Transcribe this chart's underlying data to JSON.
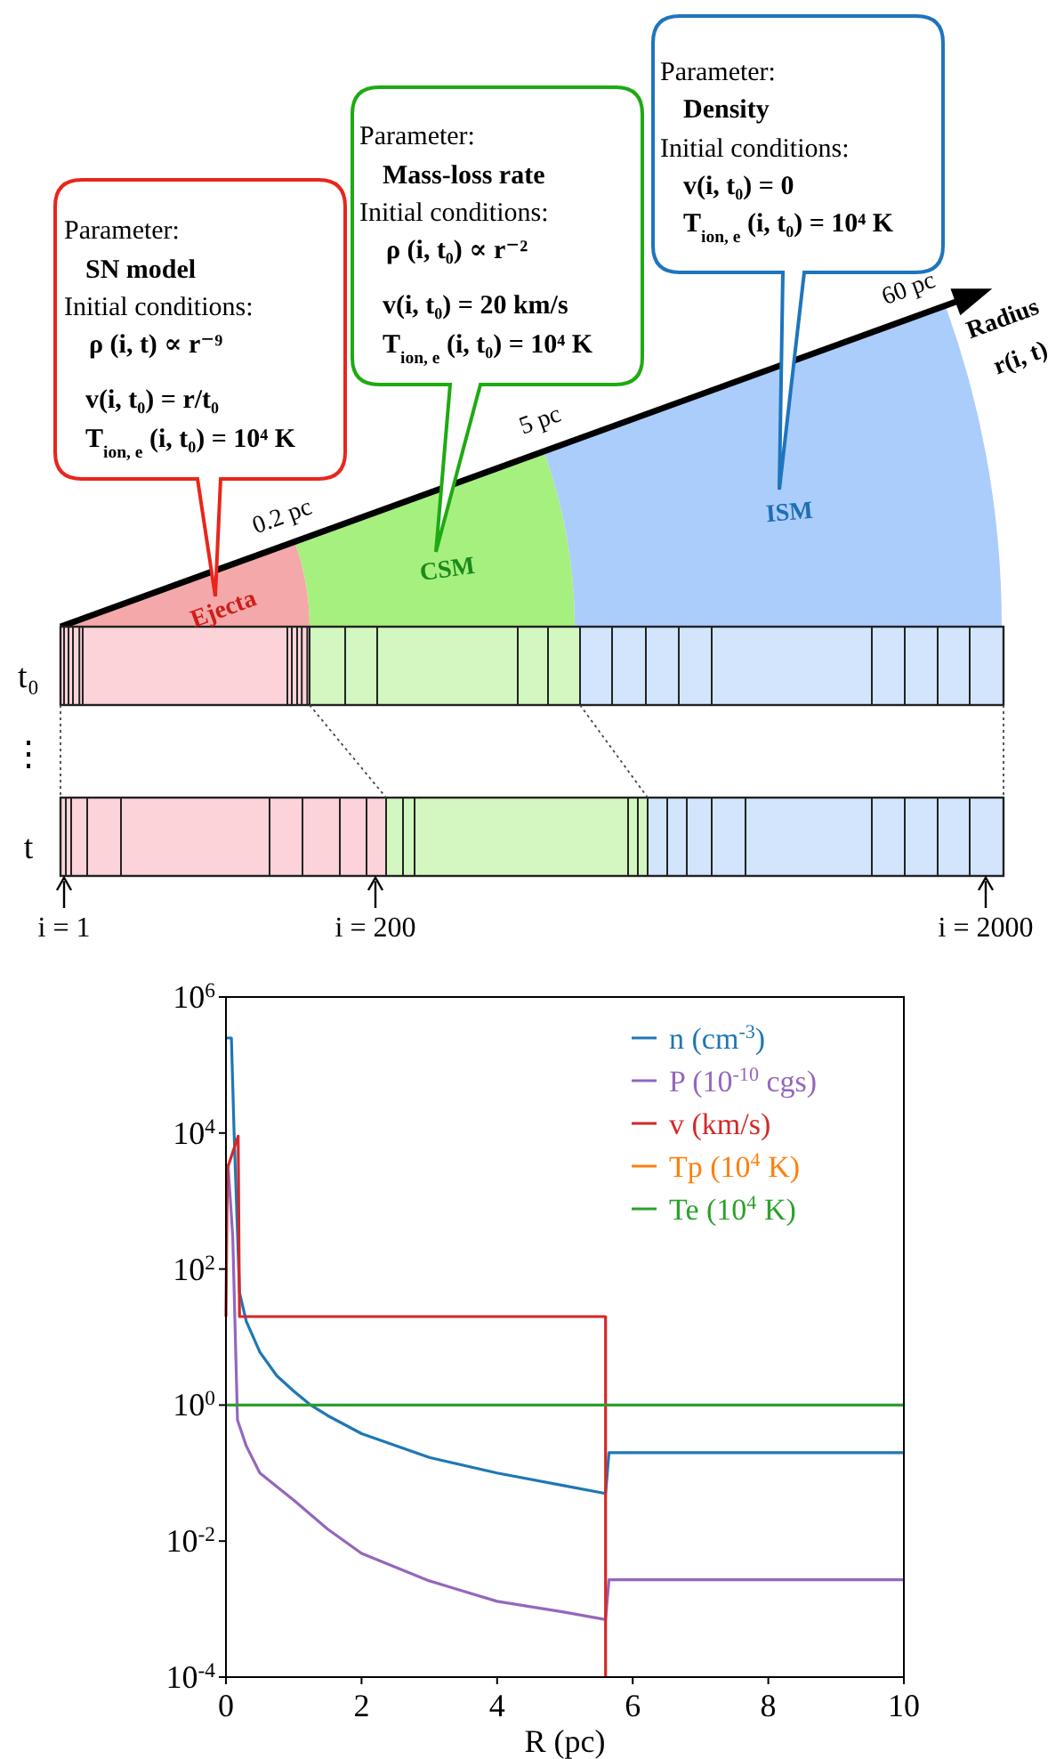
{
  "chart_data": [
    {
      "type": "other",
      "annotations": [
        "Parameter:",
        "SN model",
        "Initial conditions:",
        "ρ (i, t) ∝ r⁻⁹",
        "v(i, t₀) = r/t₀",
        "T$_{ion, e}$ (i, t₀) = 10⁴ K",
        "Parameter:",
        "Mass-loss rate",
        "Initial conditions:",
        "ρ (i, t₀) ∝ r⁻²",
        "v(i, t₀) = 20 km/s",
        "T$_{ion, e}$ (i, t₀) = 10⁴ K",
        "Parameter:",
        "Density",
        "Initial conditions:",
        "v(i, t₀) = 0",
        "T$_{ion, e}$ (i, t₀) = 10⁴ K",
        "Ejecta",
        "CSM",
        "ISM",
        "0.2 pc",
        "5 pc",
        "60 pc",
        "Radius",
        "r(i, t)",
        "t₀",
        "⋮",
        "t",
        "i = 1",
        "i = 200",
        "i = 2000"
      ]
    },
    {
      "type": "line",
      "xlabel": "R (pc)",
      "log": "y",
      "grid": false,
      "legend": "top right",
      "xlim": [
        0,
        10
      ],
      "xticks": [
        0,
        2,
        4,
        6,
        8,
        10
      ],
      "ylim": [
        0.0001,
        1000000
      ],
      "yticks": [
        {
          "value": 0.0001,
          "label": "10$^{-4}$"
        },
        {
          "value": 0.01,
          "label": "10$^{-2}$"
        },
        {
          "value": 1,
          "label": "10$^{0}$"
        },
        {
          "value": 100,
          "label": "10$^{2}$"
        },
        {
          "value": 10000,
          "label": "10$^{4}$"
        },
        {
          "value": 1000000,
          "label": "10$^{6}$"
        }
      ],
      "series": [
        {
          "name": "n (cm$^{-3}$)",
          "color": "#1f77b4",
          "x": [
            0,
            0.08,
            0.12,
            0.2,
            0.3,
            0.5,
            0.75,
            1,
            1.25,
            1.5,
            2,
            3,
            4,
            5,
            5.6,
            5.65,
            10
          ],
          "values": [
            250000,
            250000,
            10000,
            45,
            17,
            6,
            2.7,
            1.6,
            1,
            0.7,
            0.38,
            0.17,
            0.1,
            0.065,
            0.05,
            0.2,
            0.2
          ]
        },
        {
          "name": "P (10$^{-10}$ cgs)",
          "color": "#9467bd",
          "x": [
            0.03,
            0.1,
            0.17,
            0.3,
            0.5,
            1,
            1.5,
            2,
            3,
            4,
            5,
            5.6,
            5.65,
            10
          ],
          "values": [
            3500,
            300,
            0.6,
            0.25,
            0.1,
            0.04,
            0.015,
            0.0066,
            0.0026,
            0.0013,
            0.0009,
            0.0007,
            0.0027,
            0.0027
          ]
        },
        {
          "name": "v (km/s)",
          "color": "#d62728",
          "x": [
            0,
            0.02,
            0.18,
            0.2,
            5.6,
            5.6
          ],
          "values": [
            20,
            3000,
            9000,
            20,
            20,
            0.0001
          ]
        },
        {
          "name": "Tp (10$^{4}$ K)",
          "color": "#ff7f0e",
          "values": [
            null,
            null
          ]
        },
        {
          "name": "Te (10$^{4}$ K)",
          "color": "#2ca02c",
          "x": [
            0,
            10
          ],
          "values": [
            1,
            1
          ]
        }
      ]
    }
  ]
}
